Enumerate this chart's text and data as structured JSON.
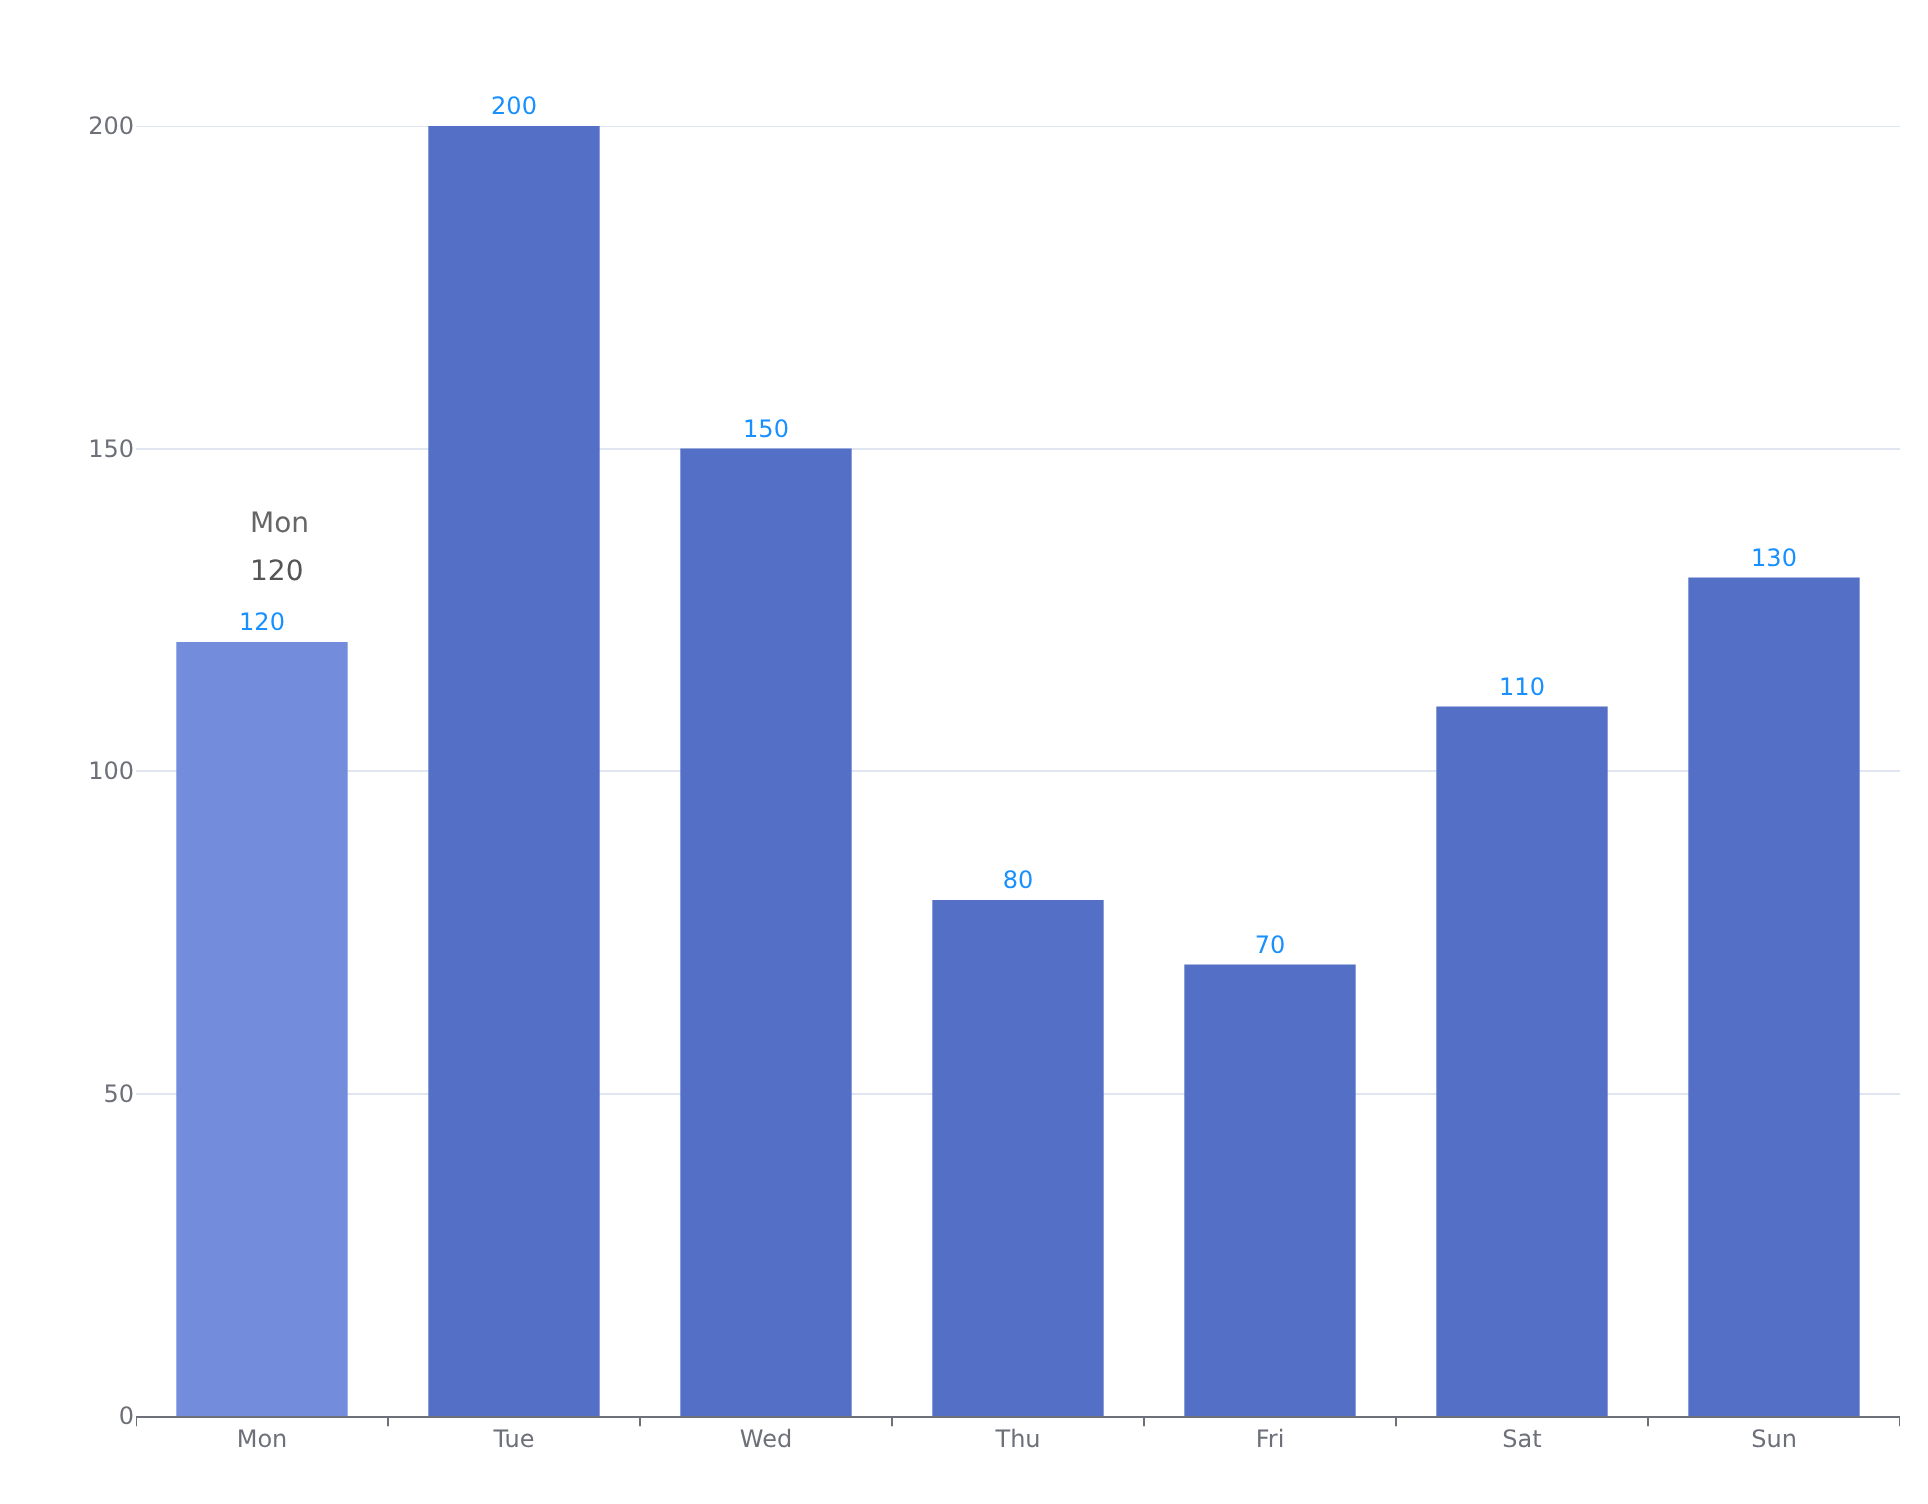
{
  "chart_data": {
    "type": "bar",
    "categories": [
      "Mon",
      "Tue",
      "Wed",
      "Thu",
      "Fri",
      "Sat",
      "Sun"
    ],
    "values": [
      120,
      200,
      150,
      80,
      70,
      110,
      130
    ],
    "colors": [
      "#738cdc",
      "#5470c6",
      "#5470c6",
      "#5470c6",
      "#5470c6",
      "#5470c6",
      "#5470c6"
    ],
    "data_labels": true,
    "ylim": [
      0,
      200
    ],
    "yticks": [
      0,
      50,
      100,
      150,
      200
    ],
    "grid": "y",
    "legend": false,
    "annotations": [
      "Mon",
      "120"
    ]
  }
}
